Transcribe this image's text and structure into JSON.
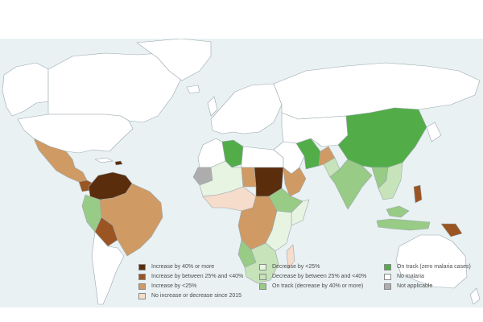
{
  "colors": {
    "ocean": "#e9f1f3",
    "no_malaria": "#ffffff",
    "border": "#9aa8ad"
  },
  "legend": {
    "items": [
      {
        "label": "Increase by 40% or more",
        "color": "#5a2d0c"
      },
      {
        "label": "Increase by between 25% and <40%",
        "color": "#9a5522"
      },
      {
        "label": "Increase by <25%",
        "color": "#d09a64"
      },
      {
        "label": "No increase or decrease since 2015",
        "color": "#f6dccb"
      },
      {
        "label": "Decrease by <25%",
        "color": "#e8f4e2"
      },
      {
        "label": "Decrease by between 25% and <40%",
        "color": "#c6e3b9"
      },
      {
        "label": "On track (decrease by 40% or more)",
        "color": "#98cb85"
      },
      {
        "label": "On track (zero malaria cases)",
        "color": "#52ad49"
      },
      {
        "label": "No malaria",
        "color": "#ffffff"
      },
      {
        "label": "Not applicable",
        "color": "#adadad"
      }
    ]
  }
}
